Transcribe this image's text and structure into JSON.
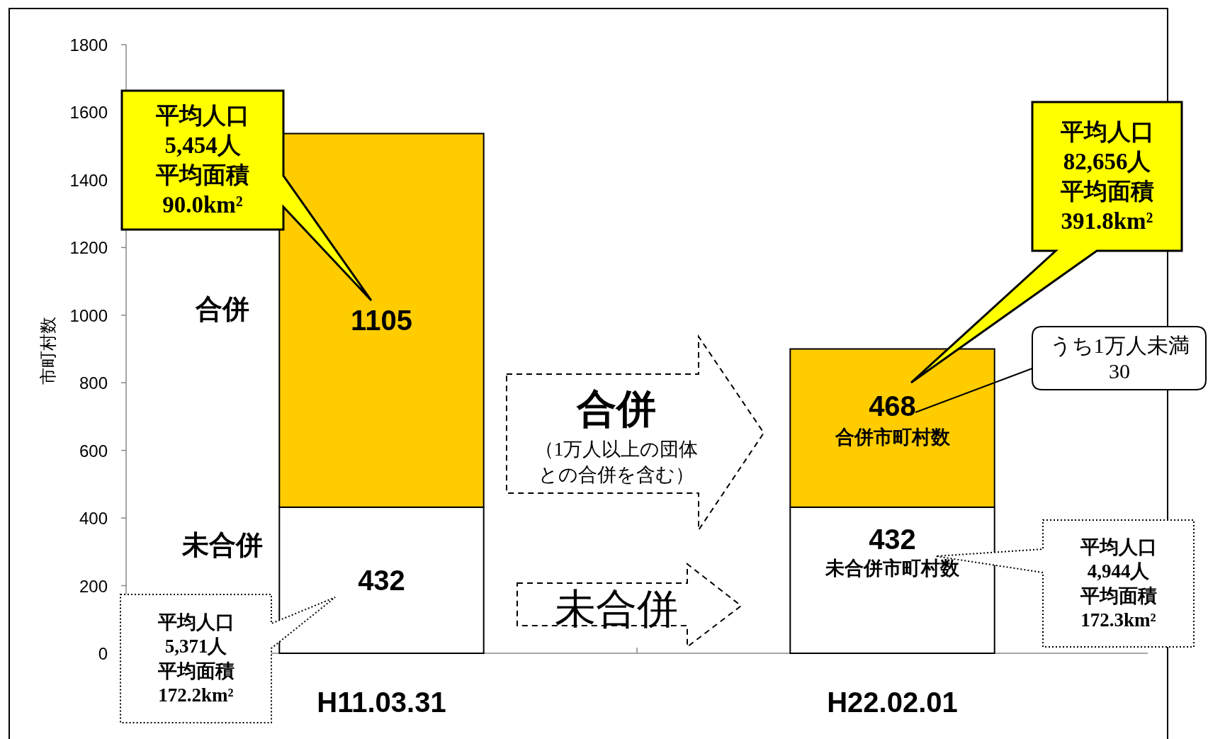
{
  "chart_data": {
    "type": "bar",
    "stacked": true,
    "ylabel": "市町村数",
    "categories": [
      "H11.03.31",
      "H22.02.01"
    ],
    "series": [
      {
        "name": "未合併",
        "color": "#ffffff",
        "values": [
          432,
          432
        ]
      },
      {
        "name": "合併",
        "color": "#ffcc00",
        "values": [
          1105,
          468
        ]
      }
    ],
    "ylim": [
      0,
      1800
    ],
    "yticks": [
      0,
      200,
      400,
      600,
      800,
      1000,
      1200,
      1400,
      1600,
      1800
    ],
    "data_labels": true,
    "grid": false,
    "legend": false,
    "annotations": [
      "平均人口",
      "5,454人",
      "平均面積",
      "90.0km²",
      "平均人口",
      "82,656人",
      "平均面積",
      "391.8km²",
      "平均人口",
      "5,371人",
      "平均面積",
      "172.2km²",
      "平均人口",
      "4,944人",
      "平均面積",
      "172.3km²",
      "うち1万人未満",
      "30",
      "合併市町村数",
      "未合併市町村数",
      "合併",
      "（1万人以上の団体",
      "との合併を含む）",
      "未合併"
    ]
  }
}
